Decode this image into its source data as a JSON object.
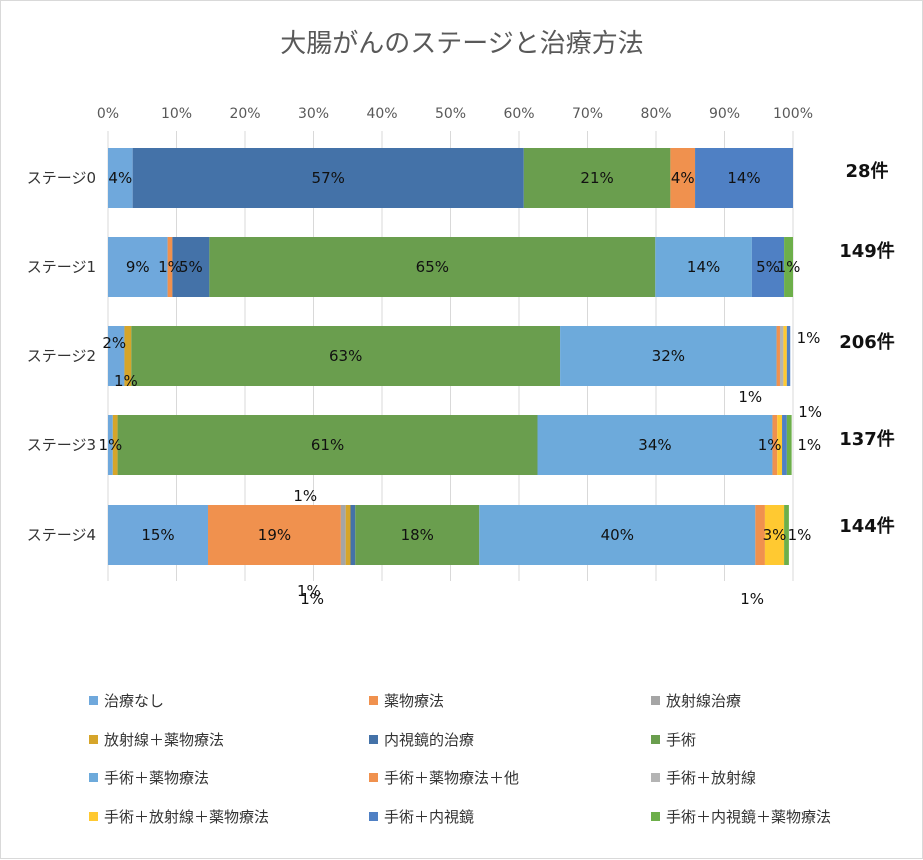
{
  "chart_data": {
    "type": "bar",
    "orientation": "horizontal",
    "stacked": "percent",
    "title": "大腸がんのステージと治療方法",
    "xlim": [
      0,
      100
    ],
    "x_ticks": [
      "0%",
      "10%",
      "20%",
      "30%",
      "40%",
      "50%",
      "60%",
      "70%",
      "80%",
      "90%",
      "100%"
    ],
    "grid": "vertical",
    "legend_position": "bottom",
    "categories": [
      "ステージ0",
      "ステージ1",
      "ステージ2",
      "ステージ3",
      "ステージ4"
    ],
    "counts": [
      "28件",
      "149件",
      "206件",
      "137件",
      "144件"
    ],
    "series": [
      {
        "name": "治療なし",
        "color": "#6FA8DC",
        "values": [
          3.6,
          8.7,
          2.4,
          0.7,
          14.6
        ]
      },
      {
        "name": "薬物療法",
        "color": "#F0914E",
        "values": [
          0,
          0.7,
          0,
          0,
          19.4
        ]
      },
      {
        "name": "放射線治療",
        "color": "#A5A5A5",
        "values": [
          0,
          0,
          0,
          0,
          0.7
        ]
      },
      {
        "name": "放射線＋薬物療法",
        "color": "#D6A52A",
        "values": [
          0,
          0,
          1.0,
          0.7,
          0.7
        ]
      },
      {
        "name": "内視鏡的治療",
        "color": "#4472A8",
        "values": [
          57.1,
          5.4,
          0,
          0,
          0.7
        ]
      },
      {
        "name": "手術",
        "color": "#6A9E4E",
        "values": [
          21.4,
          65.1,
          62.6,
          61.3,
          18.1
        ]
      },
      {
        "name": "手術＋薬物療法",
        "color": "#6DAADB",
        "values": [
          0,
          14.1,
          31.6,
          34.3,
          40.3
        ]
      },
      {
        "name": "手術＋薬物療法＋他",
        "color": "#F0914E",
        "values": [
          3.6,
          0,
          0.5,
          0.7,
          1.4
        ]
      },
      {
        "name": "手術＋放射線",
        "color": "#B4B4B4",
        "values": [
          0,
          0,
          0.5,
          0,
          0
        ]
      },
      {
        "name": "手術＋放射線＋薬物療法",
        "color": "#FFC931",
        "values": [
          0,
          0,
          0.5,
          0.7,
          2.8
        ]
      },
      {
        "name": "手術＋内視鏡",
        "color": "#4F80C4",
        "values": [
          14.3,
          4.7,
          0.5,
          0.7,
          0
        ]
      },
      {
        "name": "手術＋内視鏡＋薬物療法",
        "color": "#6DAF4A",
        "values": [
          0,
          1.3,
          0,
          0.7,
          0.7
        ]
      }
    ],
    "data_labels": [
      {
        "row": 0,
        "series": 0,
        "text": "4%"
      },
      {
        "row": 0,
        "series": 4,
        "text": "57%"
      },
      {
        "row": 0,
        "series": 5,
        "text": "21%"
      },
      {
        "row": 0,
        "series": 7,
        "text": "4%"
      },
      {
        "row": 0,
        "series": 10,
        "text": "14%"
      },
      {
        "row": 1,
        "series": 0,
        "text": "9%"
      },
      {
        "row": 1,
        "series": 1,
        "text": "1%"
      },
      {
        "row": 1,
        "series": 4,
        "text": "5%"
      },
      {
        "row": 1,
        "series": 5,
        "text": "65%"
      },
      {
        "row": 1,
        "series": 6,
        "text": "14%"
      },
      {
        "row": 1,
        "series": 10,
        "text": "5%"
      },
      {
        "row": 1,
        "series": 11,
        "text": "1%"
      },
      {
        "row": 2,
        "series": 0,
        "text": "2%"
      },
      {
        "row": 2,
        "series": 3,
        "text": "1%"
      },
      {
        "row": 2,
        "series": 5,
        "text": "63%"
      },
      {
        "row": 2,
        "series": 6,
        "text": "32%"
      },
      {
        "row": 2,
        "series": 7,
        "text": "1%"
      },
      {
        "row": 2,
        "series": 9,
        "text": "1%"
      },
      {
        "row": 2,
        "series": 10,
        "text": "1%"
      },
      {
        "row": 3,
        "series": 0,
        "text": "1%"
      },
      {
        "row": 3,
        "series": 5,
        "text": "61%"
      },
      {
        "row": 3,
        "series": 6,
        "text": "34%"
      },
      {
        "row": 3,
        "series": 9,
        "text": "1%"
      },
      {
        "row": 3,
        "series": 11,
        "text": "1%"
      },
      {
        "row": 4,
        "series": 0,
        "text": "15%"
      },
      {
        "row": 4,
        "series": 1,
        "text": "19%"
      },
      {
        "row": 4,
        "series": 2,
        "text": "1%"
      },
      {
        "row": 4,
        "series": 3,
        "text": "1%"
      },
      {
        "row": 4,
        "series": 4,
        "text": "1%"
      },
      {
        "row": 4,
        "series": 5,
        "text": "18%"
      },
      {
        "row": 4,
        "series": 6,
        "text": "40%"
      },
      {
        "row": 4,
        "series": 7,
        "text": "1%"
      },
      {
        "row": 4,
        "series": 9,
        "text": "3%"
      },
      {
        "row": 4,
        "series": 11,
        "text": "1%"
      }
    ]
  }
}
